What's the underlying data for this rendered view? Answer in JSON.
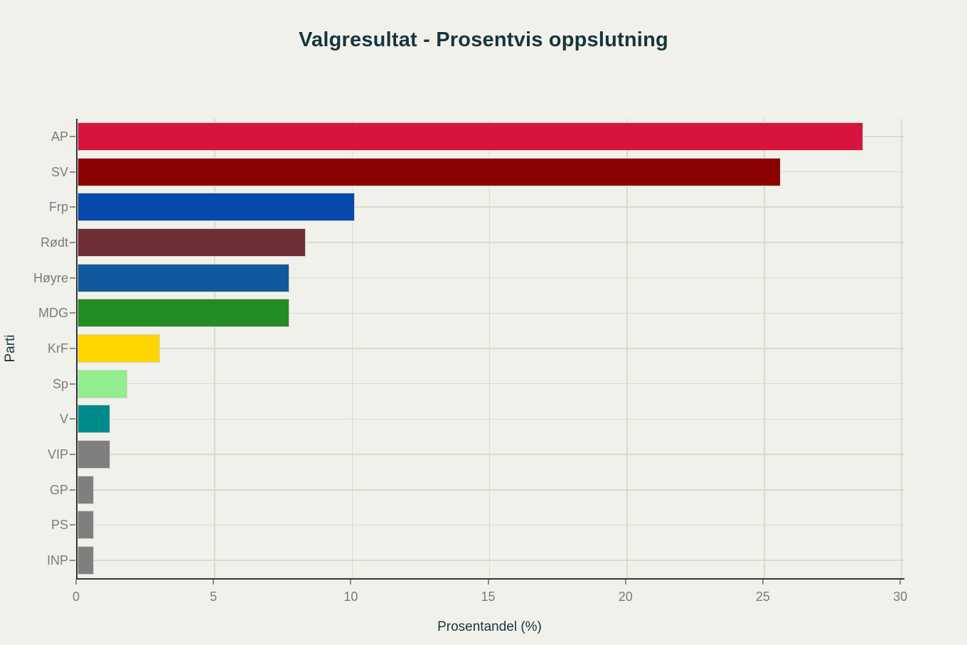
{
  "chart_data": {
    "type": "bar",
    "orientation": "horizontal",
    "title": "Valgresultat - Prosentvis oppslutning",
    "xlabel": "Prosentandel (%)",
    "ylabel": "Parti",
    "categories": [
      "AP",
      "SV",
      "Frp",
      "Rødt",
      "Høyre",
      "MDG",
      "KrF",
      "Sp",
      "V",
      "VIP",
      "GP",
      "PS",
      "INP"
    ],
    "values": [
      28.6,
      25.6,
      10.1,
      8.3,
      7.7,
      7.7,
      3.0,
      1.8,
      1.2,
      1.2,
      0.6,
      0.6,
      0.6
    ],
    "bar_colors": [
      "#d6143e",
      "#8b0000",
      "#0449ab",
      "#6f2d36",
      "#0e5a9d",
      "#228b22",
      "#ffd500",
      "#90ee90",
      "#008b8b",
      "#7f7f7f",
      "#7f7f7f",
      "#7f7f7f",
      "#7f7f7f"
    ],
    "xticks": [
      0,
      5,
      10,
      15,
      20,
      25,
      30
    ],
    "xlim": [
      0,
      30.1
    ],
    "grid": true,
    "legend": false
  },
  "colors": {
    "background": "#f1f1eb",
    "title_text": "#17353c",
    "axis_label_text": "#17353c",
    "tick_text": "#7b7c77",
    "grid": "#dbd9d1",
    "spine": "#333538",
    "bar_edge": "#d2d1ca"
  }
}
